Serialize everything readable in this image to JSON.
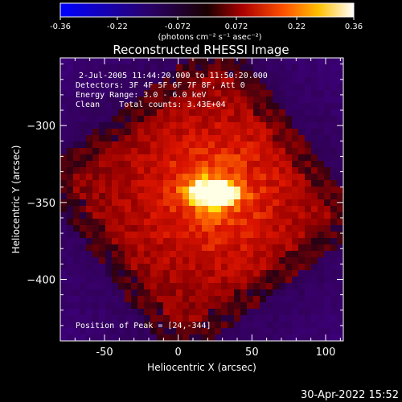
{
  "colorbar": {
    "tick_labels": [
      "-0.36",
      "-0.22",
      "-0.072",
      "0.072",
      "0.22",
      "0.36"
    ],
    "ticks": [
      -0.36,
      -0.22,
      -0.072,
      0.072,
      0.22,
      0.36
    ],
    "range": [
      -0.36,
      0.36
    ],
    "unit_label": "(photons cm⁻² s⁻¹ asec⁻²)"
  },
  "title": "Reconstructed RHESSI Image",
  "annotations": {
    "time_range": "2-Jul-2005 11:44:20.000 to 11:50:20.000",
    "detectors": "Detectors: 3F 4F 5F 6F 7F 8F, Att 0",
    "energy": "Energy Range: 3.0 - 6.0 keV",
    "clean_counts": "Clean    Total counts: 3.43E+04",
    "peak": "Position of Peak = [24,-344]"
  },
  "footer_timestamp": "30-Apr-2022 15:52",
  "chart_data": {
    "type": "heatmap",
    "title": "Reconstructed RHESSI Image",
    "xlabel": "Heliocentric X (arcsec)",
    "ylabel": "Heliocentric Y (arcsec)",
    "xlim": [
      -80,
      112
    ],
    "ylim": [
      -440,
      -256
    ],
    "x_ticks": [
      -50,
      0,
      50,
      100
    ],
    "x_tick_labels": [
      "-50",
      "0",
      "50",
      "100"
    ],
    "y_ticks": [
      -300,
      -350,
      -400
    ],
    "y_tick_labels": [
      "−300",
      "−350",
      "−400"
    ],
    "peak": {
      "x": 24,
      "y": -344
    },
    "value_range": [
      -0.36,
      0.36
    ],
    "colormap": [
      "#0000ff",
      "#000000",
      "#ff0000",
      "#ffff00",
      "#ffffff"
    ]
  }
}
